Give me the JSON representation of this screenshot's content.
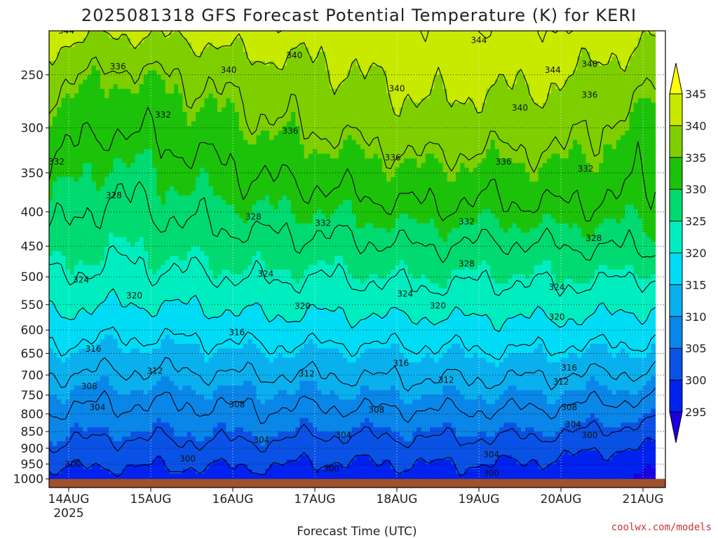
{
  "credit": "coolwx.com/models",
  "chart_data": {
    "type": "heatmap",
    "title": "2025081318 GFS Forecast Potential Temperature (K) for KERI",
    "xlabel": "Forecast Time (UTC)",
    "ylabel": "",
    "x_ticks": [
      {
        "label": "14AUG",
        "sub": "2025",
        "day": 0
      },
      {
        "label": "15AUG",
        "sub": "",
        "day": 1
      },
      {
        "label": "16AUG",
        "sub": "",
        "day": 2
      },
      {
        "label": "17AUG",
        "sub": "",
        "day": 3
      },
      {
        "label": "18AUG",
        "sub": "",
        "day": 4
      },
      {
        "label": "19AUG",
        "sub": "",
        "day": 5
      },
      {
        "label": "20AUG",
        "sub": "",
        "day": 6
      },
      {
        "label": "21AUG",
        "sub": "",
        "day": 7
      }
    ],
    "xlim_days": [
      -0.25,
      7.15
    ],
    "y_ticks": [
      250,
      300,
      350,
      400,
      450,
      500,
      550,
      600,
      650,
      700,
      750,
      800,
      850,
      900,
      950,
      1000
    ],
    "ylim_hpa": [
      1000,
      200
    ],
    "y_scale": "log",
    "ground_hpa": 1000,
    "colorbar": {
      "levels": [
        295,
        300,
        305,
        310,
        315,
        320,
        325,
        330,
        335,
        340,
        345
      ],
      "tick_labels": [
        "295",
        "300",
        "305",
        "310",
        "315",
        "320",
        "325",
        "330",
        "335",
        "340",
        "345"
      ],
      "colors": [
        "#1a00e0",
        "#0022ee",
        "#0a52e6",
        "#0a86e8",
        "#0ab0ee",
        "#00dcf5",
        "#00eebf",
        "#00da70",
        "#1cc20a",
        "#7fcf00",
        "#c8ea00",
        "#ffff00"
      ]
    },
    "contour_levels": [
      300,
      304,
      308,
      312,
      316,
      320,
      324,
      328,
      332,
      336,
      340,
      344
    ],
    "profiles": [
      {
        "day": -0.25,
        "p": [
          1000,
          950,
          900,
          850,
          800,
          750,
          700,
          650,
          600,
          550,
          500,
          450,
          400,
          350,
          300,
          250,
          200
        ],
        "theta": [
          298,
          301,
          303.5,
          305.5,
          307.5,
          309.5,
          312,
          315,
          318,
          321,
          324,
          327,
          329.5,
          332,
          334,
          337.5,
          344
        ]
      },
      {
        "day": 0.5,
        "p": [
          1000,
          950,
          900,
          850,
          800,
          750,
          700,
          650,
          600,
          550,
          500,
          450,
          400,
          350,
          300,
          250,
          200
        ],
        "theta": [
          298,
          300.5,
          302.5,
          305,
          307,
          309,
          311.5,
          314,
          317,
          320,
          323,
          325,
          327,
          329,
          332,
          335,
          343
        ]
      },
      {
        "day": 1.3,
        "p": [
          1000,
          950,
          900,
          850,
          800,
          750,
          700,
          650,
          600,
          550,
          500,
          450,
          400,
          350,
          300,
          250,
          200
        ],
        "theta": [
          298,
          300.5,
          303,
          305,
          307,
          309,
          311.5,
          314,
          317,
          320,
          323.5,
          326,
          328.5,
          330.5,
          333,
          336,
          343
        ]
      },
      {
        "day": 2.5,
        "p": [
          1000,
          950,
          900,
          850,
          800,
          750,
          700,
          650,
          600,
          550,
          500,
          450,
          400,
          350,
          300,
          250,
          200
        ],
        "theta": [
          298,
          300.5,
          303,
          305.5,
          307.5,
          309.5,
          312,
          315,
          318,
          321.5,
          324.5,
          327,
          330,
          332.5,
          335.5,
          338.5,
          345
        ]
      },
      {
        "day": 3.0,
        "p": [
          1000,
          950,
          900,
          850,
          800,
          750,
          700,
          650,
          600,
          550,
          500,
          450,
          400,
          350,
          300,
          250,
          200
        ],
        "theta": [
          298,
          299.5,
          302,
          304.5,
          307,
          309.5,
          312,
          314.5,
          318,
          321,
          324,
          327,
          330,
          333,
          336,
          339,
          343
        ]
      },
      {
        "day": 4.3,
        "p": [
          1000,
          950,
          900,
          850,
          800,
          750,
          700,
          650,
          600,
          550,
          500,
          450,
          400,
          350,
          300,
          250,
          200
        ],
        "theta": [
          298,
          300,
          302.5,
          305,
          307.5,
          310,
          312.5,
          315,
          318,
          322,
          325,
          328,
          331.5,
          334.5,
          338.5,
          341.5,
          344
        ]
      },
      {
        "day": 5.3,
        "p": [
          1000,
          950,
          900,
          850,
          800,
          750,
          700,
          650,
          600,
          550,
          500,
          450,
          400,
          350,
          300,
          250,
          200
        ],
        "theta": [
          298,
          300,
          302.5,
          305,
          307.5,
          310,
          312.5,
          315.5,
          318.5,
          321.5,
          324.5,
          327.5,
          331,
          334,
          337.5,
          341,
          344
        ]
      },
      {
        "day": 6.0,
        "p": [
          1000,
          950,
          900,
          850,
          800,
          750,
          700,
          650,
          600,
          550,
          500,
          450,
          400,
          350,
          300,
          250,
          200
        ],
        "theta": [
          297,
          299,
          301.5,
          304.5,
          307,
          309.5,
          312,
          315,
          318.5,
          322,
          325,
          328,
          331.5,
          334.5,
          337.5,
          340.5,
          345
        ]
      },
      {
        "day": 7.15,
        "p": [
          1000,
          950,
          900,
          850,
          800,
          750,
          700,
          650,
          600,
          550,
          500,
          450,
          400,
          350,
          300,
          250,
          200
        ],
        "theta": [
          294,
          296.5,
          299.5,
          302.5,
          305.5,
          308.5,
          311.5,
          314.5,
          317.5,
          320.5,
          324,
          328.5,
          330.5,
          332.5,
          333.5,
          337,
          342
        ]
      }
    ],
    "contour_labels": [
      {
        "text": "344",
        "day": -0.03,
        "p": 215
      },
      {
        "text": "344",
        "day": 5.0,
        "p": 222
      },
      {
        "text": "340",
        "day": 2.75,
        "p": 234
      },
      {
        "text": "340",
        "day": 1.95,
        "p": 246
      },
      {
        "text": "344",
        "day": 5.9,
        "p": 246
      },
      {
        "text": "340",
        "day": 6.35,
        "p": 241
      },
      {
        "text": "336",
        "day": 0.6,
        "p": 243
      },
      {
        "text": "340",
        "day": 4.0,
        "p": 262
      },
      {
        "text": "336",
        "day": 6.35,
        "p": 268
      },
      {
        "text": "340",
        "day": 5.5,
        "p": 280
      },
      {
        "text": "332",
        "day": 1.15,
        "p": 287
      },
      {
        "text": "336",
        "day": 2.7,
        "p": 303
      },
      {
        "text": "336",
        "day": 3.95,
        "p": 332
      },
      {
        "text": "336",
        "day": 5.3,
        "p": 337
      },
      {
        "text": "332",
        "day": -0.15,
        "p": 337
      },
      {
        "text": "332",
        "day": 6.3,
        "p": 345
      },
      {
        "text": "328",
        "day": 0.55,
        "p": 378
      },
      {
        "text": "328",
        "day": 2.25,
        "p": 407
      },
      {
        "text": "332",
        "day": 3.1,
        "p": 416
      },
      {
        "text": "332",
        "day": 4.85,
        "p": 414
      },
      {
        "text": "328",
        "day": 6.4,
        "p": 438
      },
      {
        "text": "328",
        "day": 4.85,
        "p": 478
      },
      {
        "text": "324",
        "day": 0.15,
        "p": 505
      },
      {
        "text": "324",
        "day": 2.4,
        "p": 495
      },
      {
        "text": "324",
        "day": 5.95,
        "p": 518
      },
      {
        "text": "324",
        "day": 4.1,
        "p": 530
      },
      {
        "text": "320",
        "day": 0.8,
        "p": 533
      },
      {
        "text": "320",
        "day": 2.85,
        "p": 553
      },
      {
        "text": "320",
        "day": 4.5,
        "p": 552
      },
      {
        "text": "320",
        "day": 5.95,
        "p": 574
      },
      {
        "text": "316",
        "day": 2.05,
        "p": 605
      },
      {
        "text": "316",
        "day": 0.3,
        "p": 640
      },
      {
        "text": "316",
        "day": 4.05,
        "p": 672
      },
      {
        "text": "316",
        "day": 6.1,
        "p": 683
      },
      {
        "text": "312",
        "day": 1.05,
        "p": 690
      },
      {
        "text": "312",
        "day": 2.9,
        "p": 697
      },
      {
        "text": "312",
        "day": 4.6,
        "p": 712
      },
      {
        "text": "312",
        "day": 6.0,
        "p": 717
      },
      {
        "text": "308",
        "day": 0.25,
        "p": 728
      },
      {
        "text": "308",
        "day": 2.05,
        "p": 775
      },
      {
        "text": "308",
        "day": 3.75,
        "p": 789
      },
      {
        "text": "308",
        "day": 6.1,
        "p": 782
      },
      {
        "text": "304",
        "day": 0.35,
        "p": 782
      },
      {
        "text": "304",
        "day": 6.15,
        "p": 830
      },
      {
        "text": "304",
        "day": 2.35,
        "p": 875
      },
      {
        "text": "304",
        "day": 3.35,
        "p": 860
      },
      {
        "text": "300",
        "day": 6.35,
        "p": 861
      },
      {
        "text": "304",
        "day": 5.15,
        "p": 920
      },
      {
        "text": "300",
        "day": 1.45,
        "p": 933
      },
      {
        "text": "300",
        "day": 0.05,
        "p": 950
      },
      {
        "text": "300",
        "day": 3.2,
        "p": 965
      },
      {
        "text": "300",
        "day": 5.15,
        "p": 980
      }
    ]
  }
}
